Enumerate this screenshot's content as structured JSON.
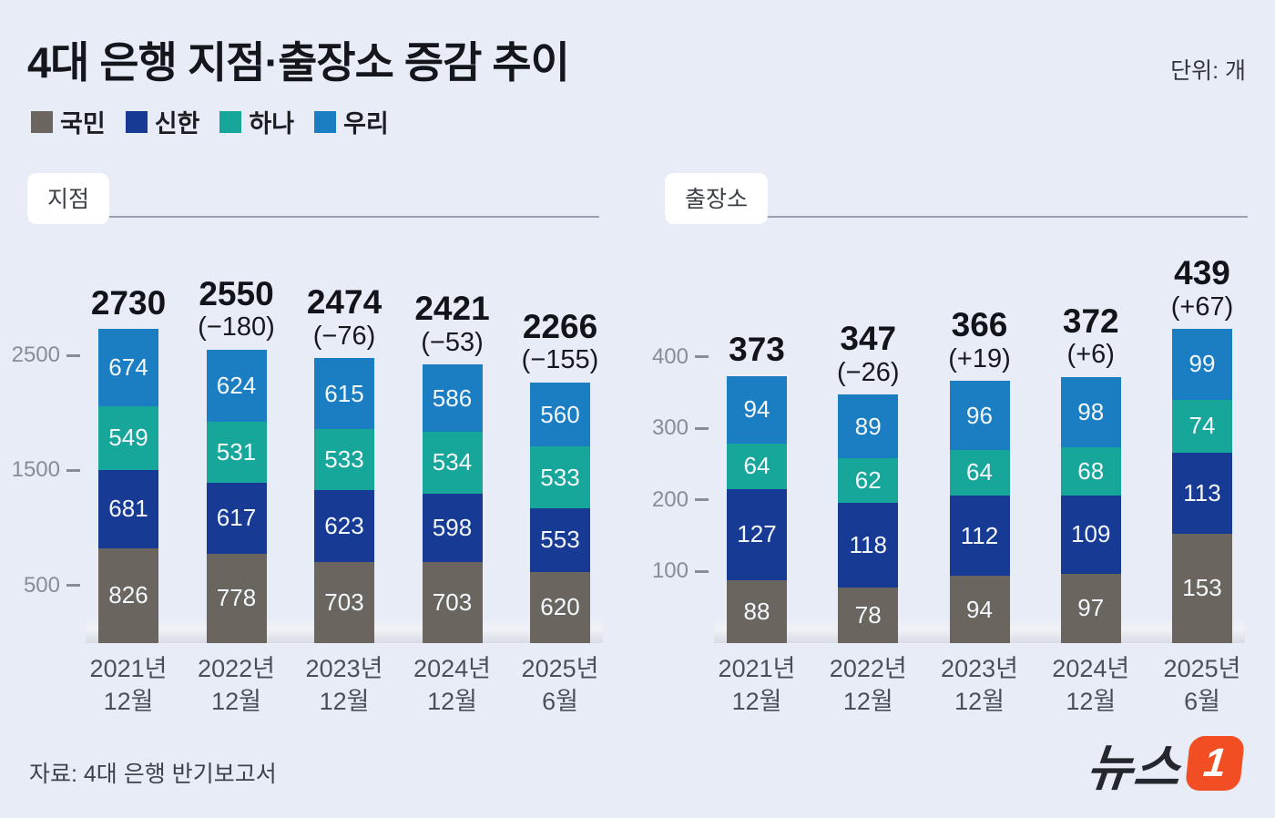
{
  "page": {
    "background": "#e8ecf7"
  },
  "title": {
    "prefix": "4대 은행 ",
    "bold": "지점·출장소 증감 추이"
  },
  "unit_label": "단위: 개",
  "legend": [
    {
      "label": "국민",
      "color": "#6b6560"
    },
    {
      "label": "신한",
      "color": "#173a94"
    },
    {
      "label": "하나",
      "color": "#17a69a"
    },
    {
      "label": "우리",
      "color": "#1b7dc2"
    }
  ],
  "source": "자료: 4대 은행 반기보고서",
  "logo": {
    "text": "뉴스",
    "one": "1",
    "box_color": "#f14e23"
  },
  "chart_data": [
    {
      "type": "bar",
      "stacked": true,
      "title": "지점",
      "categories": [
        [
          "2021년",
          "12월"
        ],
        [
          "2022년",
          "12월"
        ],
        [
          "2023년",
          "12월"
        ],
        [
          "2024년",
          "12월"
        ],
        [
          "2025년",
          "6월"
        ]
      ],
      "series": [
        {
          "name": "국민",
          "color": "#6b6560",
          "values": [
            826,
            778,
            703,
            703,
            620
          ]
        },
        {
          "name": "신한",
          "color": "#173a94",
          "values": [
            681,
            617,
            623,
            598,
            553
          ]
        },
        {
          "name": "하나",
          "color": "#17a69a",
          "values": [
            549,
            531,
            533,
            534,
            533
          ]
        },
        {
          "name": "우리",
          "color": "#1b7dc2",
          "values": [
            674,
            624,
            615,
            586,
            560
          ]
        }
      ],
      "totals": [
        2730,
        2550,
        2474,
        2421,
        2266
      ],
      "deltas": [
        "",
        "(−180)",
        "(−76)",
        "(−53)",
        "(−155)"
      ],
      "yticks": [
        500,
        1500,
        2500
      ],
      "ylim": [
        0,
        2730
      ],
      "legend_position": "top",
      "grid": false
    },
    {
      "type": "bar",
      "stacked": true,
      "title": "출장소",
      "categories": [
        [
          "2021년",
          "12월"
        ],
        [
          "2022년",
          "12월"
        ],
        [
          "2023년",
          "12월"
        ],
        [
          "2024년",
          "12월"
        ],
        [
          "2025년",
          "6월"
        ]
      ],
      "series": [
        {
          "name": "국민",
          "color": "#6b6560",
          "values": [
            88,
            78,
            94,
            97,
            153
          ]
        },
        {
          "name": "신한",
          "color": "#173a94",
          "values": [
            127,
            118,
            112,
            109,
            113
          ]
        },
        {
          "name": "하나",
          "color": "#17a69a",
          "values": [
            64,
            62,
            64,
            68,
            74
          ]
        },
        {
          "name": "우리",
          "color": "#1b7dc2",
          "values": [
            94,
            89,
            96,
            98,
            99
          ]
        }
      ],
      "totals": [
        373,
        347,
        366,
        372,
        439
      ],
      "deltas": [
        "",
        "(−26)",
        "(+19)",
        "(+6)",
        "(+67)"
      ],
      "yticks": [
        100,
        200,
        300,
        400
      ],
      "ylim": [
        0,
        439
      ],
      "legend_position": "top",
      "grid": false
    }
  ]
}
